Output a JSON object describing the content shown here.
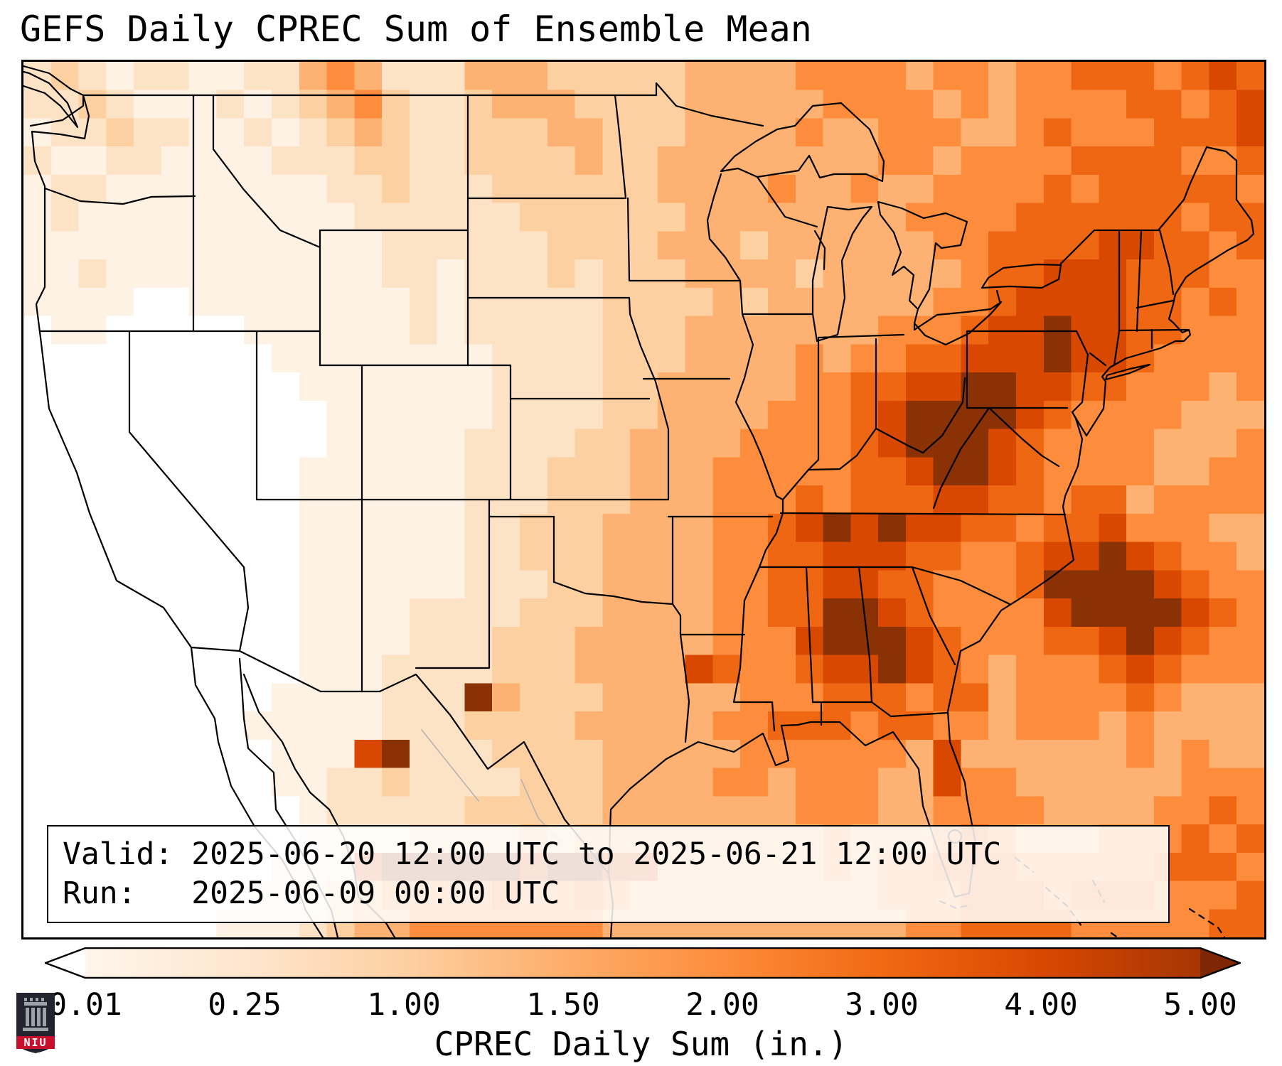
{
  "title": "GEFS Daily CPREC Sum of Ensemble Mean",
  "info_box": {
    "valid_line": "Valid: 2025-06-20 12:00 UTC to 2025-06-21 12:00 UTC",
    "run_line": "Run:   2025-06-09 00:00 UTC"
  },
  "colorbar": {
    "label": "CPREC Daily Sum (in.)",
    "ticks": [
      "0.01",
      "0.25",
      "1.00",
      "1.50",
      "2.00",
      "3.00",
      "4.00",
      "5.00"
    ],
    "gradient": [
      "#fff5eb",
      "#fee6ce",
      "#fdd0a2",
      "#fdae6b",
      "#fd8d3c",
      "#f16913",
      "#d94801",
      "#a63603"
    ],
    "under_color": "#ffffff",
    "over_color": "#7f2704",
    "outline_color": "#000000"
  },
  "logo": {
    "text": "NIU",
    "banner_color": "#c8102e",
    "shield_color": "#23232f",
    "emblem_color": "#9ba2a8"
  },
  "chart_data": {
    "type": "heatmap",
    "title": "GEFS Daily CPREC Sum of Ensemble Mean",
    "variable": "CPREC Daily Sum",
    "units": "in.",
    "valid_period": "2025-06-20 12:00 UTC to 2025-06-21 12:00 UTC",
    "model_run": "2025-06-09 00:00 UTC",
    "region": "Contiguous United States and surroundings",
    "colorbar_boundaries_in": [
      0.01,
      0.25,
      1.0,
      1.5,
      2.0,
      3.0,
      4.0,
      5.0
    ],
    "colorbar_extend": "both",
    "level_value_ranges": [
      "<0.01",
      "0.01-0.25",
      "0.25-1.00",
      "1.00-1.50",
      "1.50-2.00",
      "2.00-3.00",
      "3.00-4.00",
      "4.00-5.00",
      ">5.00"
    ],
    "level_palette": [
      "#ffffff",
      "#fdf2e4",
      "#fde3c6",
      "#fdd0a2",
      "#fdb273",
      "#fd8d3c",
      "#ef6712",
      "#d94801",
      "#8a3206"
    ],
    "grid_cols": 45,
    "grid_rows": 31,
    "grid_note": "Each digit 0-8 is one coarse cell, index into level_palette/level_value_ranges; rows run north to south, columns west to east",
    "grid": [
      "23212 21122 45422 24443 33334 44455 55455 45566 65676",
      "22321 11212 34532 23444 33334 44445 55545 45555 66567",
      "12232 21121 23432 23334 43334 44454 45554 45655 56667",
      "21122 11112 22332 23333 43344 44444 45545 55566 66556",
      "12211 11111 12232 22333 33344 44544 54455 55656 66665",
      "12111 11111 11222 22233 33334 44444 44555 56666 66566",
      "11111 11111 11122 22223 33344 43444 44455 66667 76656",
      "11211 11111 11122 12223 23334 44434 44445 66777 66655",
      "11110 01111 11112 12222 23333 43444 44455 67777 66565",
      "01100 00011 11112 12222 23334 44444 45556 77877 66555",
      "00000 00001 11111 11222 23334 44454 55667 77877 65555",
      "00000 00000 11111 11222 23344 44455 66778 87766 55545",
      "00000 00000 01111 11222 23344 44555 67888 87655 55444",
      "00000 00000 01111 12222 33444 45555 67888 76555 54445",
      "00000 00000 11111 12223 33444 55555 66788 76555 54455",
      "00000 00000 11111 12223 33444 55565 66677 66566 45555",
      "00000 00000 11111 12233 34444 55678 78776 65667 55544",
      "00000 00000 11111 12233 34444 55667 77665 56778 76554",
      "00000 00000 11111 12223 34444 55667 76655 56888 87655",
      "00000 00000 11112 22233 34444 55668 87655 55788 88765",
      "00000 00000 11112 22333 44444 55578 88765 55667 87655",
      "00000 00000 11122 22333 44447 65567 78765 45556 76555",
      "00000 00001 11122 28433 34444 45556 66566 45555 65444",
      "00000 00011 11122 23333 44444 55666 56655 45554 54444",
      "00000 00001 11782 22333 34444 45555 55474 44444 54544",
      "00000 00001 12232 22233 34444 55455 54475 54444 44555",
      "00000 00000 12222 23333 34444 44455 54455 55444 45565",
      "00000 00000 12223 33343 44444 44445 44456 54445 55656",
      "00000 00001 12788 88878 87744 44445 45566 65555 56665",
      "00000 00011 23455 55655 65444 44444 45556 66566 65556",
      "00000 00111 23445 55555 54444 44444 44556 66655 55566"
    ]
  }
}
